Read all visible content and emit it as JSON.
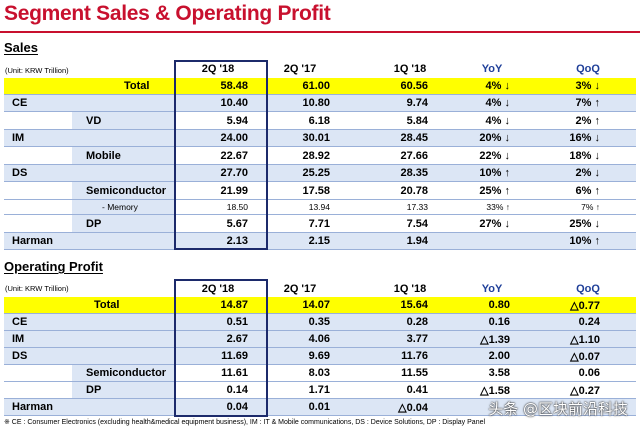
{
  "title": "Segment Sales & Operating Profit",
  "columns": [
    "2Q '18",
    "2Q '17",
    "1Q '18",
    "YoY",
    "QoQ"
  ],
  "sales": {
    "heading": "Sales",
    "unit": "(Unit: KRW Trillion)",
    "rows": [
      {
        "label": "Total",
        "v": [
          "58.48",
          "61.00",
          "60.56",
          "4% ↓",
          "3% ↓"
        ]
      },
      {
        "label": "CE",
        "v": [
          "10.40",
          "10.80",
          "9.74",
          "4% ↓",
          "7% ↑"
        ]
      },
      {
        "label": "VD",
        "v": [
          "5.94",
          "6.18",
          "5.84",
          "4% ↓",
          "2% ↑"
        ]
      },
      {
        "label": "IM",
        "v": [
          "24.00",
          "30.01",
          "28.45",
          "20% ↓",
          "16% ↓"
        ]
      },
      {
        "label": "Mobile",
        "v": [
          "22.67",
          "28.92",
          "27.66",
          "22% ↓",
          "18% ↓"
        ]
      },
      {
        "label": "DS",
        "v": [
          "27.70",
          "25.25",
          "28.35",
          "10% ↑",
          "2% ↓"
        ]
      },
      {
        "label": "Semiconductor",
        "v": [
          "21.99",
          "17.58",
          "20.78",
          "25% ↑",
          "6% ↑"
        ]
      },
      {
        "label": "- Memory",
        "v": [
          "18.50",
          "13.94",
          "17.33",
          "33% ↑",
          "7% ↑"
        ]
      },
      {
        "label": "DP",
        "v": [
          "5.67",
          "7.71",
          "7.54",
          "27% ↓",
          "25% ↓"
        ]
      },
      {
        "label": "Harman",
        "v": [
          "2.13",
          "2.15",
          "1.94",
          "",
          "10% ↑"
        ]
      }
    ]
  },
  "op": {
    "heading": "Operating Profit",
    "unit": "(Unit: KRW Trillion)",
    "rows": [
      {
        "label": "Total",
        "v": [
          "14.87",
          "14.07",
          "15.64",
          "0.80",
          "△0.77"
        ]
      },
      {
        "label": "CE",
        "v": [
          "0.51",
          "0.35",
          "0.28",
          "0.16",
          "0.24"
        ]
      },
      {
        "label": "IM",
        "v": [
          "2.67",
          "4.06",
          "3.77",
          "△1.39",
          "△1.10"
        ]
      },
      {
        "label": "DS",
        "v": [
          "11.69",
          "9.69",
          "11.76",
          "2.00",
          "△0.07"
        ]
      },
      {
        "label": "Semiconductor",
        "v": [
          "11.61",
          "8.03",
          "11.55",
          "3.58",
          "0.06"
        ]
      },
      {
        "label": "DP",
        "v": [
          "0.14",
          "1.71",
          "0.41",
          "△1.58",
          "△0.27"
        ]
      },
      {
        "label": "Harman",
        "v": [
          "0.04",
          "0.01",
          "△0.04",
          "",
          ""
        ]
      }
    ]
  },
  "footnote": "※ CE : Consumer Electronics (excluding health&medical equipment business),  IM : IT & Mobile communications,  DS : Device Solutions,  DP : Display Panel",
  "watermark": "头条 @区块前沿科技"
}
